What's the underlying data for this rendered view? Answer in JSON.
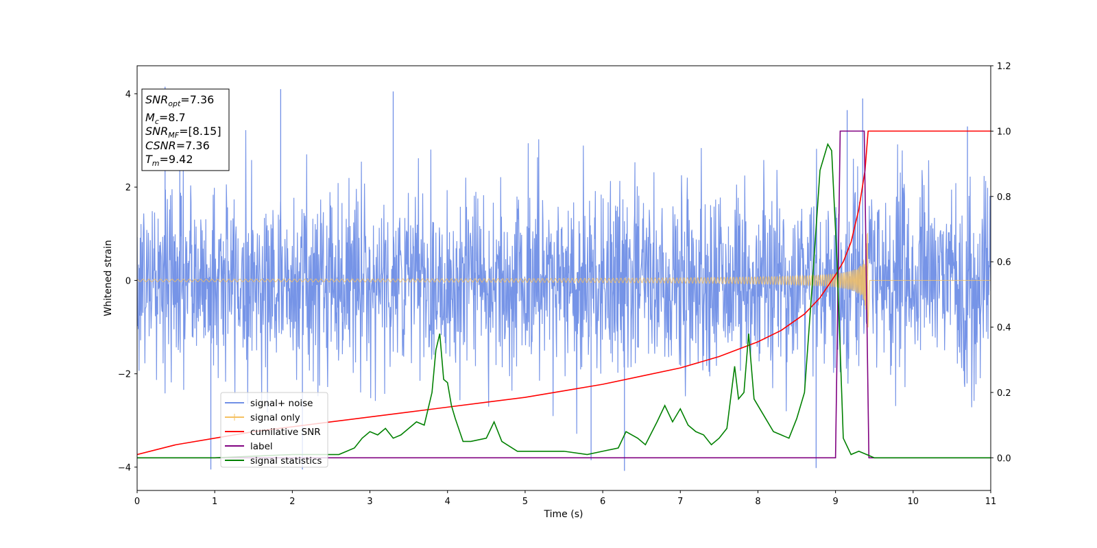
{
  "chart_data": {
    "type": "line",
    "title": "",
    "xlabel": "Time (s)",
    "ylabel": "Whitened strain",
    "xlim": [
      0,
      11
    ],
    "ylim": [
      -4.5,
      4.6
    ],
    "y2lim": [
      -0.1,
      1.2
    ],
    "grid": false,
    "legend_position": "lower-left",
    "x_ticks": [
      "0",
      "1",
      "2",
      "3",
      "4",
      "5",
      "6",
      "7",
      "8",
      "9",
      "10",
      "11"
    ],
    "y_ticks": [
      "4",
      "2",
      "0",
      "−2",
      "−4"
    ],
    "y_tick_values": [
      4,
      2,
      0,
      -2,
      -4
    ],
    "y2_ticks": [
      "1.2",
      "1.0",
      "0.8",
      "0.6",
      "0.4",
      "0.2",
      "0.0"
    ],
    "y2_tick_values": [
      1.2,
      1.0,
      0.8,
      0.6,
      0.4,
      0.2,
      0.0
    ],
    "info_box": {
      "snr_opt": "=7.36",
      "mc": "=8.7",
      "snr_mf": "=[8.15]",
      "csnr": "=7.36",
      "tm": "=9.42"
    },
    "legend": [
      {
        "label": "signal+ noise",
        "color": "#6f8ee6"
      },
      {
        "label": "signal only",
        "color": "#f5c060"
      },
      {
        "label": "cumilative SNR",
        "color": "#ff0000"
      },
      {
        "label": "label",
        "color": "#800080"
      },
      {
        "label": "signal statistics",
        "color": "#008000"
      }
    ],
    "series": [
      {
        "name": "signal+ noise",
        "axis": "left",
        "color": "#6f8ee6",
        "kind": "noise",
        "noise_std": 1.0,
        "x_range": [
          0,
          11
        ],
        "spike_points": [
          [
            0.36,
            4.15
          ],
          [
            0.55,
            3.9
          ],
          [
            0.95,
            -4.05
          ],
          [
            1.85,
            4.1
          ],
          [
            2.13,
            -4.05
          ],
          [
            3.3,
            4.05
          ],
          [
            5.85,
            -3.85
          ],
          [
            6.28,
            -4.08
          ],
          [
            8.75,
            -4.02
          ],
          [
            9.35,
            3.9
          ],
          [
            9.15,
            3.65
          ],
          [
            10.7,
            3.3
          ]
        ]
      },
      {
        "name": "signal only",
        "axis": "left",
        "color": "#f5c060",
        "kind": "chirp",
        "x_range": [
          0,
          9.42
        ],
        "amplitude_start": 0.03,
        "amplitude_end": 1.15
      },
      {
        "name": "cumilative SNR",
        "axis": "right",
        "color": "#ff0000",
        "x": [
          0,
          0.5,
          1,
          1.5,
          2,
          2.5,
          3,
          3.5,
          4,
          4.5,
          5,
          5.5,
          6,
          6.5,
          7,
          7.5,
          8,
          8.3,
          8.6,
          8.8,
          9.0,
          9.1,
          9.2,
          9.3,
          9.38,
          9.42,
          11
        ],
        "y": [
          0.01,
          0.04,
          0.06,
          0.08,
          0.095,
          0.11,
          0.125,
          0.14,
          0.155,
          0.17,
          0.185,
          0.205,
          0.225,
          0.25,
          0.275,
          0.31,
          0.355,
          0.39,
          0.44,
          0.49,
          0.56,
          0.6,
          0.66,
          0.76,
          0.88,
          1.0,
          1.0
        ]
      },
      {
        "name": "label",
        "axis": "right",
        "color": "#800080",
        "x": [
          0,
          9.0,
          9.06,
          9.37,
          9.43,
          11
        ],
        "y": [
          0.0,
          0.0,
          1.0,
          1.0,
          0.0,
          0.0
        ]
      },
      {
        "name": "signal statistics",
        "axis": "right",
        "color": "#008000",
        "x": [
          0,
          1.0,
          2.0,
          2.3,
          2.6,
          2.8,
          2.9,
          3.0,
          3.1,
          3.2,
          3.3,
          3.4,
          3.5,
          3.6,
          3.7,
          3.8,
          3.85,
          3.9,
          3.95,
          4.0,
          4.05,
          4.1,
          4.2,
          4.3,
          4.5,
          4.6,
          4.7,
          4.9,
          5.1,
          5.3,
          5.5,
          5.8,
          6.0,
          6.2,
          6.3,
          6.45,
          6.55,
          6.7,
          6.8,
          6.9,
          7.0,
          7.1,
          7.2,
          7.3,
          7.4,
          7.5,
          7.6,
          7.7,
          7.75,
          7.82,
          7.88,
          7.95,
          8.05,
          8.2,
          8.3,
          8.4,
          8.5,
          8.6,
          8.7,
          8.8,
          8.9,
          8.95,
          9.02,
          9.1,
          9.2,
          9.3,
          9.4,
          9.5,
          11
        ],
        "y": [
          0.0,
          0.0,
          0.01,
          0.01,
          0.01,
          0.03,
          0.06,
          0.08,
          0.07,
          0.09,
          0.06,
          0.07,
          0.09,
          0.11,
          0.1,
          0.2,
          0.33,
          0.38,
          0.24,
          0.23,
          0.16,
          0.12,
          0.05,
          0.05,
          0.06,
          0.11,
          0.05,
          0.02,
          0.02,
          0.02,
          0.02,
          0.01,
          0.02,
          0.03,
          0.08,
          0.06,
          0.04,
          0.11,
          0.16,
          0.11,
          0.15,
          0.1,
          0.08,
          0.07,
          0.04,
          0.06,
          0.09,
          0.28,
          0.18,
          0.2,
          0.38,
          0.18,
          0.14,
          0.08,
          0.07,
          0.06,
          0.12,
          0.2,
          0.53,
          0.88,
          0.96,
          0.94,
          0.6,
          0.06,
          0.01,
          0.02,
          0.01,
          0.0,
          0.0
        ]
      }
    ]
  }
}
